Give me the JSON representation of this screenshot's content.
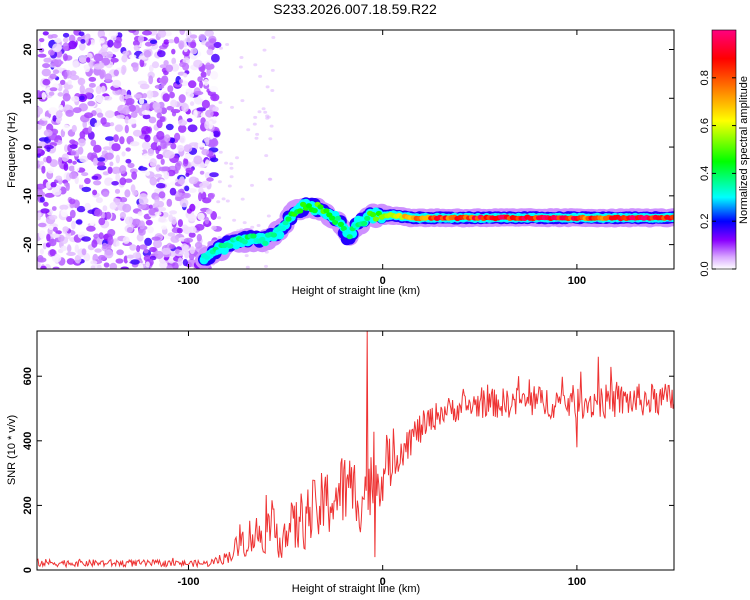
{
  "title": "S233.2026.007.18.59.R22",
  "chart_data": [
    {
      "type": "heatmap",
      "xlabel": "Height of straight line (km)",
      "ylabel": "Frequency (Hz)",
      "xlim": [
        -178,
        150
      ],
      "ylim": [
        -25,
        24
      ],
      "x_ticks": [
        -100,
        0,
        100
      ],
      "y_ticks": [
        -20,
        -10,
        0,
        10,
        20
      ],
      "colorbar": {
        "label": "Normalized spectral amplitude",
        "range": [
          0,
          1
        ],
        "ticks": [
          0,
          0.2,
          0.4,
          0.6,
          0.8
        ],
        "tick_labels": [
          "0.0",
          "0.2",
          "0.4",
          "0.6",
          "0.8"
        ],
        "colors": [
          "#ffffff",
          "#c080ff",
          "#8a00ff",
          "#0000ff",
          "#00ffff",
          "#00ff00",
          "#ffff00",
          "#ff8000",
          "#ff0000",
          "#ff0080"
        ]
      },
      "noise_region": {
        "x": [
          -178,
          -85
        ],
        "y": [
          -25,
          24
        ],
        "amplitude": 0.15
      },
      "signal_ridge": [
        {
          "x": -90,
          "y": -22.5,
          "amp": 0.35
        },
        {
          "x": -80,
          "y": -20.0,
          "amp": 0.35
        },
        {
          "x": -70,
          "y": -19.0,
          "amp": 0.4
        },
        {
          "x": -60,
          "y": -19.0,
          "amp": 0.35
        },
        {
          "x": -52,
          "y": -17.0,
          "amp": 0.35
        },
        {
          "x": -45,
          "y": -13.0,
          "amp": 0.45
        },
        {
          "x": -38,
          "y": -12.0,
          "amp": 0.5
        },
        {
          "x": -30,
          "y": -13.0,
          "amp": 0.5
        },
        {
          "x": -22,
          "y": -15.5,
          "amp": 0.4
        },
        {
          "x": -18,
          "y": -18.5,
          "amp": 0.35
        },
        {
          "x": -12,
          "y": -15.5,
          "amp": 0.4
        },
        {
          "x": -5,
          "y": -14.0,
          "amp": 0.5
        },
        {
          "x": 5,
          "y": -14.0,
          "amp": 0.6
        },
        {
          "x": 15,
          "y": -14.5,
          "amp": 0.75
        },
        {
          "x": 30,
          "y": -14.5,
          "amp": 0.85
        },
        {
          "x": 60,
          "y": -14.5,
          "amp": 0.9
        },
        {
          "x": 90,
          "y": -14.5,
          "amp": 0.9
        },
        {
          "x": 110,
          "y": -14.5,
          "amp": 0.8
        },
        {
          "x": 130,
          "y": -14.5,
          "amp": 0.9
        },
        {
          "x": 150,
          "y": -14.5,
          "amp": 0.9
        }
      ]
    },
    {
      "type": "line",
      "xlabel": "Height of straight line (km)",
      "ylabel": "SNR (10 * v/v)",
      "xlim": [
        -178,
        150
      ],
      "ylim": [
        0,
        740
      ],
      "x_ticks": [
        -100,
        0,
        100
      ],
      "y_ticks": [
        0,
        200,
        400,
        600
      ],
      "series": [
        {
          "name": "SNR",
          "color": "#ee3333",
          "envelope": [
            {
              "x": -178,
              "mean": 22,
              "jitter": 12
            },
            {
              "x": -90,
              "mean": 20,
              "jitter": 10
            },
            {
              "x": -80,
              "mean": 40,
              "jitter": 20
            },
            {
              "x": -70,
              "mean": 100,
              "jitter": 60
            },
            {
              "x": -60,
              "mean": 120,
              "jitter": 70
            },
            {
              "x": -50,
              "mean": 110,
              "jitter": 80
            },
            {
              "x": -40,
              "mean": 160,
              "jitter": 100
            },
            {
              "x": -30,
              "mean": 200,
              "jitter": 110
            },
            {
              "x": -20,
              "mean": 250,
              "jitter": 120
            },
            {
              "x": -10,
              "mean": 230,
              "jitter": 120
            },
            {
              "x": 0,
              "mean": 300,
              "jitter": 90
            },
            {
              "x": 10,
              "mean": 380,
              "jitter": 60
            },
            {
              "x": 20,
              "mean": 440,
              "jitter": 50
            },
            {
              "x": 30,
              "mean": 490,
              "jitter": 40
            },
            {
              "x": 50,
              "mean": 515,
              "jitter": 45
            },
            {
              "x": 80,
              "mean": 520,
              "jitter": 50
            },
            {
              "x": 110,
              "mean": 520,
              "jitter": 55
            },
            {
              "x": 150,
              "mean": 530,
              "jitter": 50
            }
          ],
          "spikes": [
            {
              "x": -8,
              "y": 740
            },
            {
              "x": -4,
              "y": 40
            },
            {
              "x": 100,
              "y": 380
            },
            {
              "x": 111,
              "y": 660
            },
            {
              "x": 70,
              "y": 600
            }
          ]
        }
      ]
    }
  ]
}
